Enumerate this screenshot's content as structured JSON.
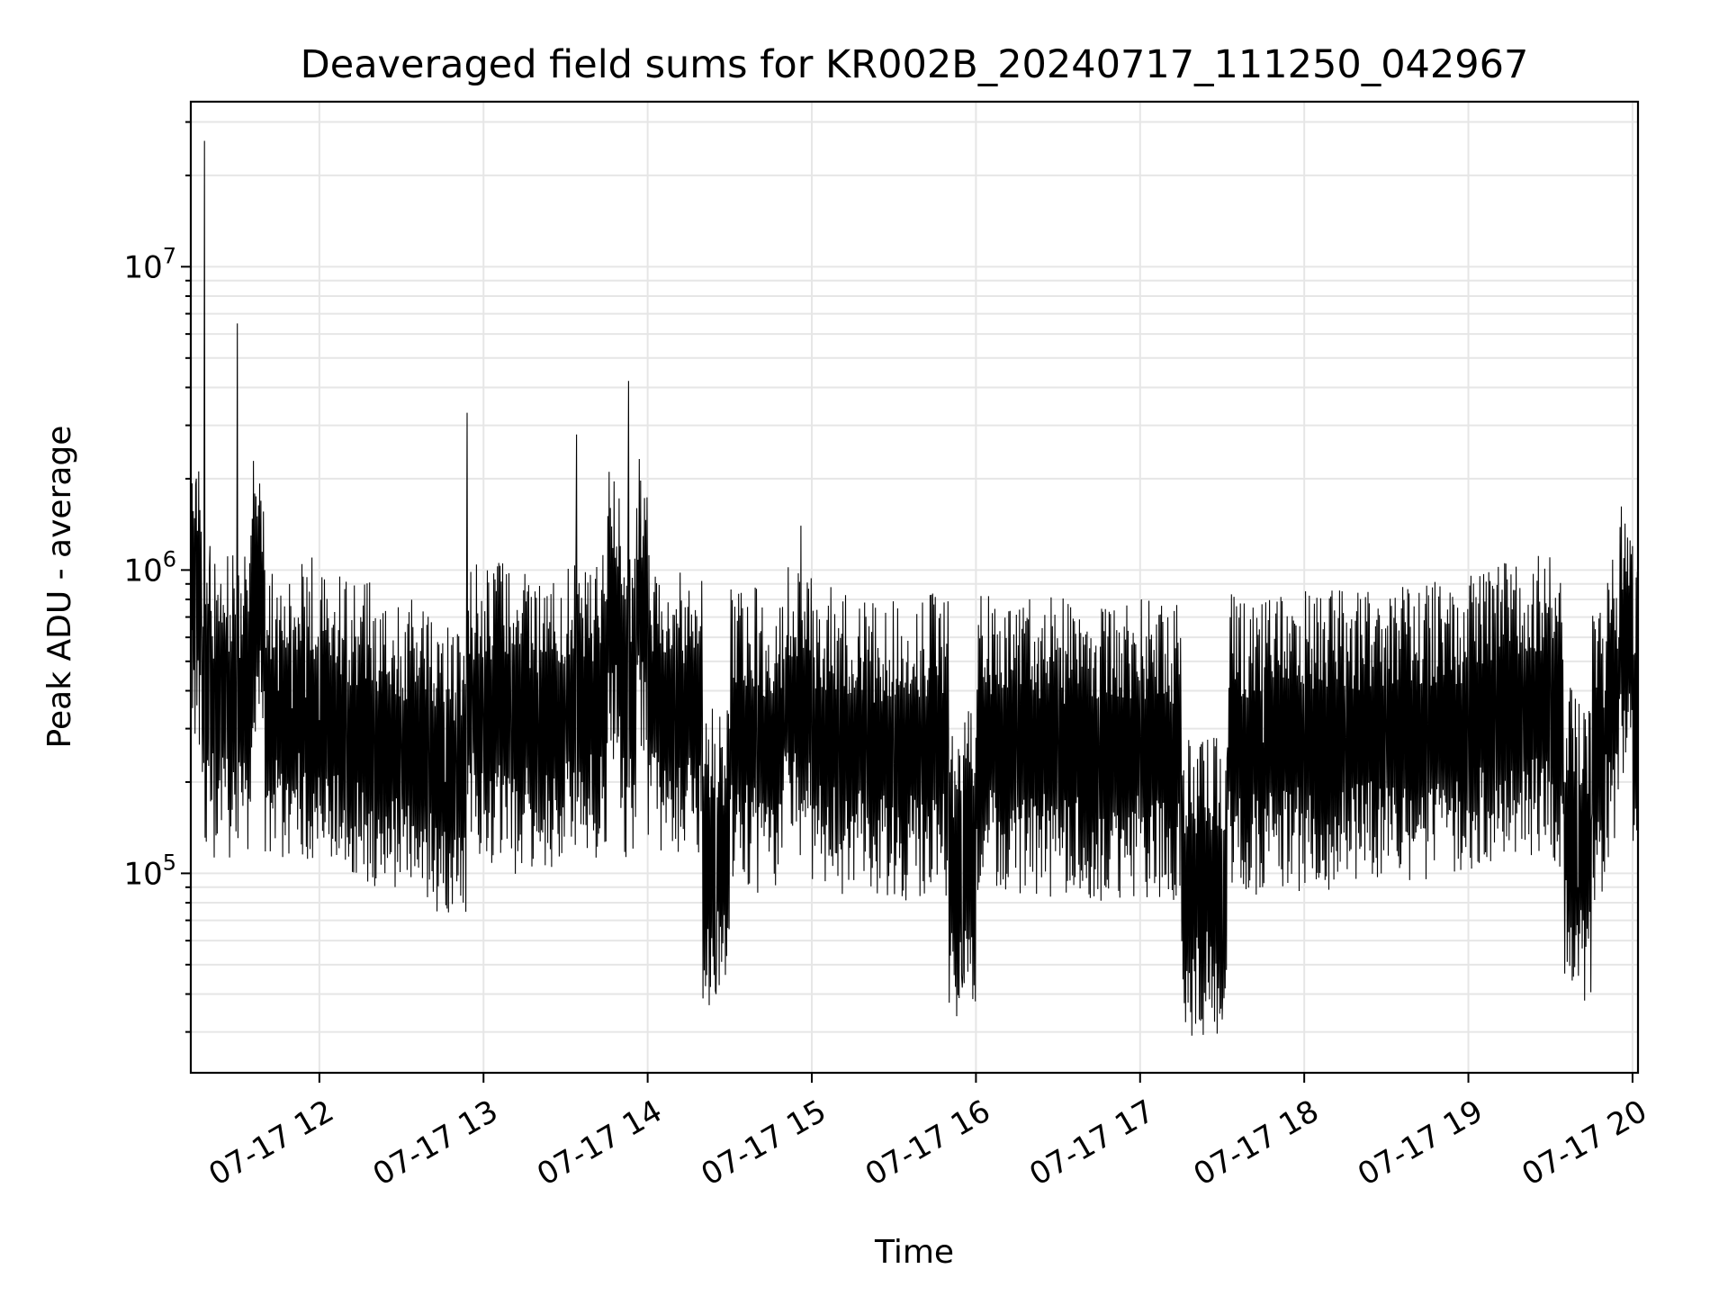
{
  "chart_data": {
    "type": "line",
    "title": "Deaveraged field sums for KR002B_20240717_111250_042967",
    "xlabel": "Time",
    "ylabel": "Peak ADU - average",
    "xscale": "time",
    "yscale": "log",
    "xlim": [
      "07-17 11:13",
      "07-17 20:02"
    ],
    "ylim": [
      22000,
      35000000
    ],
    "grid": true,
    "x_ticks": [
      {
        "value": 12,
        "label": "07-17 12"
      },
      {
        "value": 13,
        "label": "07-17 13"
      },
      {
        "value": 14,
        "label": "07-17 14"
      },
      {
        "value": 15,
        "label": "07-17 15"
      },
      {
        "value": 16,
        "label": "07-17 16"
      },
      {
        "value": 17,
        "label": "07-17 17"
      },
      {
        "value": 18,
        "label": "07-17 18"
      },
      {
        "value": 19,
        "label": "07-17 19"
      },
      {
        "value": 20,
        "label": "07-17 20"
      }
    ],
    "y_ticks": [
      {
        "value": 100000,
        "base": "10",
        "exp": "5"
      },
      {
        "value": 1000000,
        "base": "10",
        "exp": "6"
      },
      {
        "value": 10000000,
        "base": "10",
        "exp": "7"
      }
    ],
    "series": [
      {
        "color": "#000000",
        "x": [
          "07-17 11:13",
          "07-17 11:15",
          "07-17 11:17",
          "07-17 11:18",
          "07-17 11:20",
          "07-17 11:22",
          "07-17 11:24",
          "07-17 11:26",
          "07-17 11:30",
          "07-17 11:35",
          "07-17 11:40",
          "07-17 11:45",
          "07-17 11:50",
          "07-17 11:55",
          "07-17 12:00",
          "07-17 12:10",
          "07-17 12:20",
          "07-17 12:30",
          "07-17 12:40",
          "07-17 12:46",
          "07-17 12:50",
          "07-17 12:54",
          "07-17 12:56",
          "07-17 13:00",
          "07-17 13:10",
          "07-17 13:20",
          "07-17 13:30",
          "07-17 13:34",
          "07-17 13:40",
          "07-17 13:45",
          "07-17 13:50",
          "07-17 13:53",
          "07-17 13:56",
          "07-17 14:00",
          "07-17 14:10",
          "07-17 14:20",
          "07-17 14:25",
          "07-17 14:30",
          "07-17 14:40",
          "07-17 14:50",
          "07-17 14:56",
          "07-17 15:00",
          "07-17 15:10",
          "07-17 15:20",
          "07-17 15:30",
          "07-17 15:40",
          "07-17 15:50",
          "07-17 15:55",
          "07-17 16:00",
          "07-17 16:15",
          "07-17 16:30",
          "07-17 16:45",
          "07-17 17:00",
          "07-17 17:15",
          "07-17 17:30",
          "07-17 17:32",
          "07-17 17:45",
          "07-17 18:00",
          "07-17 18:15",
          "07-17 18:30",
          "07-17 18:45",
          "07-17 19:00",
          "07-17 19:10",
          "07-17 19:20",
          "07-17 19:30",
          "07-17 19:35",
          "07-17 19:40",
          "07-17 19:45",
          "07-17 19:50",
          "07-17 19:55",
          "07-17 20:00",
          "07-17 20:02"
        ],
        "y": [
          800000,
          2000000,
          600000,
          26000000,
          1200000,
          500000,
          900000,
          700000,
          6500000,
          1300000,
          1000000,
          400000,
          350000,
          380000,
          320000,
          300000,
          280000,
          260000,
          250000,
          200000,
          230000,
          3300000,
          450000,
          350000,
          330000,
          300000,
          350000,
          2800000,
          500000,
          800000,
          1200000,
          4200000,
          1600000,
          700000,
          350000,
          330000,
          40000,
          300000,
          280000,
          260000,
          1400000,
          300000,
          270000,
          260000,
          250000,
          260000,
          270000,
          42000,
          280000,
          270000,
          260000,
          250000,
          260000,
          250000,
          33000,
          260000,
          270000,
          280000,
          270000,
          300000,
          280000,
          300000,
          350000,
          400000,
          420000,
          200000,
          90000,
          150000,
          400000,
          600000,
          1200000,
          500000
        ]
      }
    ]
  }
}
